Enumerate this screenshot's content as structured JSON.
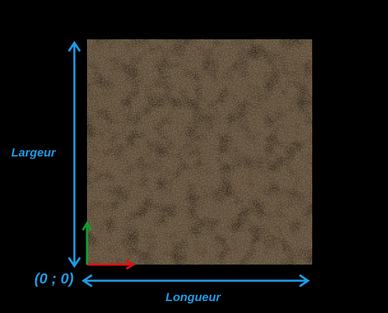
{
  "labels": {
    "width_axis": "Largeur",
    "length_axis": "Longueur",
    "origin": "(0 ; 0)"
  },
  "texture": {
    "name": "soil-dirt-texture",
    "base_color": "#5a4a38",
    "light_color": "#8f7b62",
    "dark_color": "#2e241a"
  },
  "colors": {
    "dimension_arrows": "#1e9be6",
    "label_text": "#1e9be6",
    "x_axis": "#e01010",
    "y_axis": "#10a030",
    "background": "#000000"
  }
}
